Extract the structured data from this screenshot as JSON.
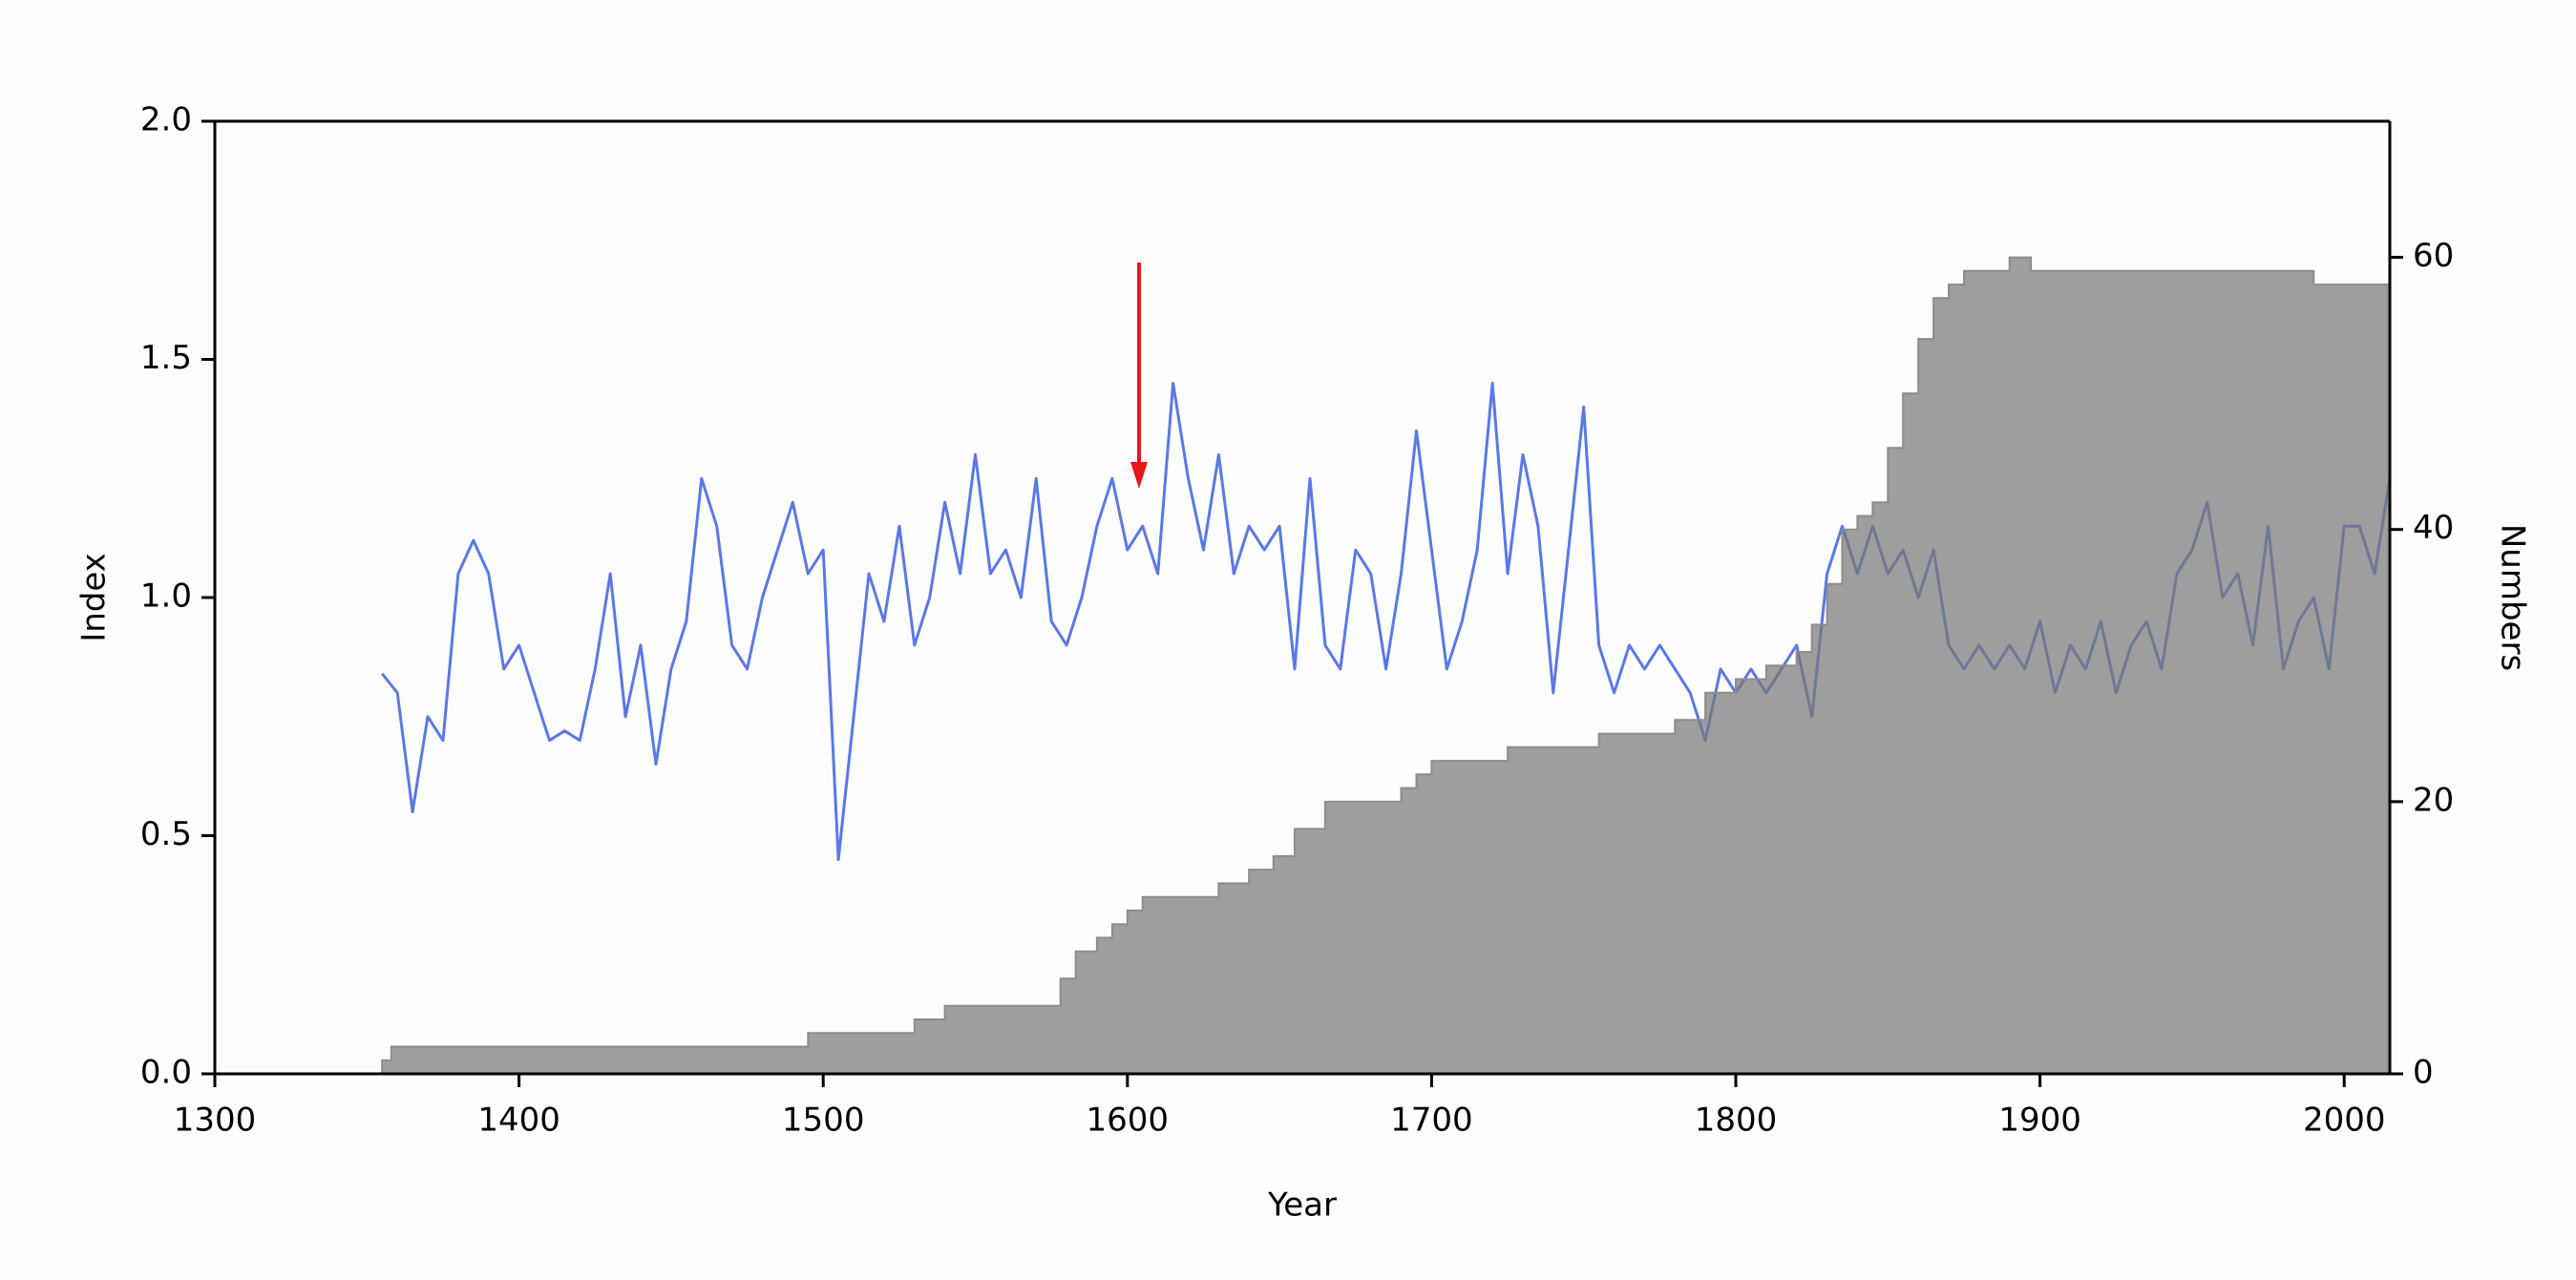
{
  "chart_data": {
    "type": "line-area",
    "xlabel": "Year",
    "ylabel": "Index",
    "y2label": "Numbers",
    "xlim": [
      1300,
      2015
    ],
    "xticks": [
      1300,
      1400,
      1500,
      1600,
      1700,
      1800,
      1900,
      2000
    ],
    "ylim": [
      0,
      2
    ],
    "yticks": [
      {
        "value": 0,
        "label": "0.0"
      },
      {
        "value": 0.5,
        "label": "0.5"
      },
      {
        "value": 1,
        "label": "1.0"
      },
      {
        "value": 1.5,
        "label": "1.5"
      },
      {
        "value": 2,
        "label": "2.0"
      }
    ],
    "y2lim": [
      0,
      70
    ],
    "y2ticks": [
      0,
      20,
      40,
      60
    ],
    "series": [
      {
        "type": "line",
        "color": "#5a78e6",
        "x": [
          1355,
          1360,
          1365,
          1370,
          1375,
          1380,
          1385,
          1390,
          1395,
          1400,
          1405,
          1410,
          1415,
          1420,
          1425,
          1430,
          1435,
          1440,
          1445,
          1450,
          1455,
          1460,
          1465,
          1470,
          1475,
          1480,
          1485,
          1490,
          1495,
          1500,
          1505,
          1510,
          1515,
          1520,
          1525,
          1530,
          1535,
          1540,
          1545,
          1550,
          1555,
          1560,
          1565,
          1570,
          1575,
          1580,
          1585,
          1590,
          1595,
          1600,
          1605,
          1610,
          1615,
          1620,
          1625,
          1630,
          1635,
          1640,
          1645,
          1650,
          1655,
          1660,
          1665,
          1670,
          1675,
          1680,
          1685,
          1690,
          1695,
          1700,
          1705,
          1710,
          1715,
          1720,
          1725,
          1730,
          1735,
          1740,
          1745,
          1750,
          1755,
          1760,
          1765,
          1770,
          1775,
          1780,
          1785,
          1790,
          1795,
          1800,
          1805,
          1810,
          1815,
          1820,
          1825,
          1830,
          1835,
          1840,
          1845,
          1850,
          1855,
          1860,
          1865,
          1870,
          1875,
          1880,
          1885,
          1890,
          1895,
          1900,
          1905,
          1910,
          1915,
          1920,
          1925,
          1930,
          1935,
          1940,
          1945,
          1950,
          1955,
          1960,
          1965,
          1970,
          1975,
          1980,
          1985,
          1990,
          1995,
          2000,
          2005,
          2010,
          2015
        ],
        "values": [
          0.84,
          0.8,
          0.55,
          0.75,
          0.7,
          1.05,
          1.12,
          1.05,
          0.85,
          0.9,
          0.8,
          0.7,
          0.72,
          0.7,
          0.85,
          1.05,
          0.75,
          0.9,
          0.65,
          0.85,
          0.95,
          1.25,
          1.15,
          0.9,
          0.85,
          1.0,
          1.1,
          1.2,
          1.05,
          1.1,
          0.45,
          0.75,
          1.05,
          0.95,
          1.15,
          0.9,
          1.0,
          1.2,
          1.05,
          1.3,
          1.05,
          1.1,
          1.0,
          1.25,
          0.95,
          0.9,
          1.0,
          1.15,
          1.25,
          1.1,
          1.15,
          1.05,
          1.45,
          1.25,
          1.1,
          1.3,
          1.05,
          1.15,
          1.1,
          1.15,
          0.85,
          1.25,
          0.9,
          0.85,
          1.1,
          1.05,
          0.85,
          1.05,
          1.35,
          1.1,
          0.85,
          0.95,
          1.1,
          1.45,
          1.05,
          1.3,
          1.15,
          0.8,
          1.1,
          1.4,
          0.9,
          0.8,
          0.9,
          0.85,
          0.9,
          0.85,
          0.8,
          0.7,
          0.85,
          0.8,
          0.85,
          0.8,
          0.85,
          0.9,
          0.75,
          1.05,
          1.15,
          1.05,
          1.15,
          1.05,
          1.1,
          1.0,
          1.1,
          0.9,
          0.85,
          0.9,
          0.85,
          0.9,
          0.85,
          0.95,
          0.8,
          0.9,
          0.85,
          0.95,
          0.8,
          0.9,
          0.95,
          0.85,
          1.05,
          1.1,
          1.2,
          1.0,
          1.05,
          0.9,
          1.15,
          0.85,
          0.95,
          1.0,
          0.85,
          1.15,
          1.15,
          1.05,
          1.25
        ]
      },
      {
        "type": "area",
        "axis": "y2",
        "color": "#8c8c8c",
        "x": [
          1355,
          1358,
          1495,
          1530,
          1540,
          1578,
          1583,
          1590,
          1595,
          1600,
          1605,
          1630,
          1640,
          1648,
          1655,
          1665,
          1690,
          1695,
          1700,
          1725,
          1755,
          1780,
          1790,
          1800,
          1810,
          1820,
          1825,
          1830,
          1835,
          1840,
          1845,
          1850,
          1855,
          1860,
          1865,
          1870,
          1875,
          1890,
          1897,
          1990
        ],
        "values": [
          1,
          2,
          3,
          4,
          5,
          7,
          9,
          10,
          11,
          12,
          13,
          14,
          15,
          16,
          18,
          20,
          21,
          22,
          23,
          24,
          25,
          26,
          28,
          29,
          30,
          31,
          33,
          36,
          40,
          41,
          42,
          46,
          50,
          54,
          57,
          58,
          59,
          60,
          59,
          58
        ]
      }
    ]
  }
}
